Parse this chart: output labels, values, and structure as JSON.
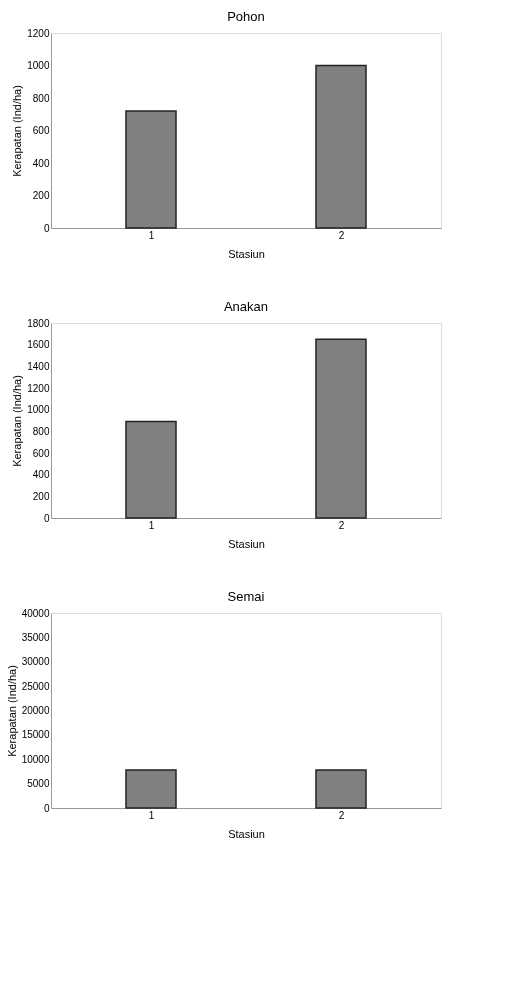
{
  "chart_data": [
    {
      "type": "bar",
      "title": "Pohon",
      "xlabel": "Stasiun",
      "ylabel": "Kerapatan (Ind/ha)",
      "categories": [
        "1",
        "2"
      ],
      "values": [
        720,
        1000
      ],
      "color": "#808080",
      "ylim": [
        0,
        1200
      ],
      "yticks": [
        0,
        200,
        400,
        600,
        800,
        1000,
        1200
      ],
      "grid": false
    },
    {
      "type": "bar",
      "title": "Anakan",
      "xlabel": "Stasiun",
      "ylabel": "Kerapatan (Ind/ha)",
      "categories": [
        "1",
        "2"
      ],
      "values": [
        890,
        1650
      ],
      "color": "#808080",
      "ylim": [
        0,
        1800
      ],
      "yticks": [
        0,
        200,
        400,
        600,
        800,
        1000,
        1200,
        1400,
        1600,
        1800
      ],
      "grid": false
    },
    {
      "type": "bar",
      "title": "Semai",
      "xlabel": "Stasiun",
      "ylabel": "Kerapatan (Ind/ha)",
      "categories": [
        "1",
        "2"
      ],
      "values": [
        7800,
        7800
      ],
      "color": "#808080",
      "ylim": [
        0,
        40000
      ],
      "yticks": [
        0,
        5000,
        10000,
        15000,
        20000,
        25000,
        30000,
        35000,
        40000
      ],
      "grid": false
    }
  ]
}
